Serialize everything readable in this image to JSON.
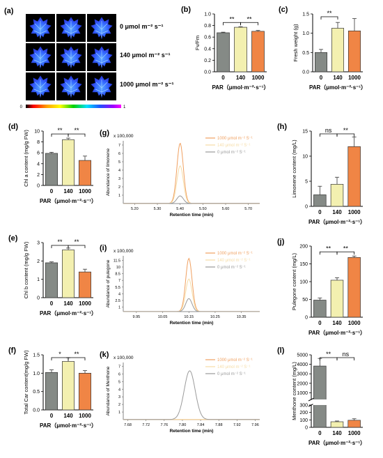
{
  "colors": {
    "gray": "#858a86",
    "cream": "#f3f0b0",
    "orange": "#f08545",
    "l1000": "#f0a060",
    "l140": "#f6dca5",
    "l0": "#9a9a9a"
  },
  "panel_a": {
    "letter": "(a)",
    "row_labels": [
      "0 μmol m⁻² s⁻¹",
      "140 μmol m⁻² s⁻¹",
      "1000 μmol m⁻² s⁻¹"
    ],
    "scale_min": "0",
    "scale_max": "1"
  },
  "chart_data": [
    {
      "id": "b",
      "letter": "(b)",
      "type": "bar",
      "categories": [
        "0",
        "140",
        "1000"
      ],
      "values": [
        0.675,
        0.77,
        0.7
      ],
      "errors": [
        0.01,
        0.01,
        0.015
      ],
      "ylabel": "Fv/Fm",
      "xlabel": "PAR（μmol·m⁻²·s⁻¹）",
      "ylim": [
        0,
        1.0
      ],
      "yticks": [
        "0.0",
        "0.2",
        "0.4",
        "0.6",
        "0.8",
        "1.0"
      ],
      "sig": [
        {
          "from": 0,
          "to": 1,
          "label": "**"
        },
        {
          "from": 1,
          "to": 2,
          "label": "**"
        }
      ]
    },
    {
      "id": "c",
      "letter": "(c)",
      "type": "bar",
      "categories": [
        "0",
        "140",
        "1000"
      ],
      "values": [
        0.5,
        1.13,
        1.06
      ],
      "errors": [
        0.08,
        0.15,
        0.32
      ],
      "ylabel": "Fresh weight (g)",
      "xlabel": "PAR（μmol·m⁻²·s⁻¹）",
      "ylim": [
        0,
        1.5
      ],
      "yticks": [
        "0.0",
        "0.5",
        "1.0",
        "1.5"
      ],
      "sig": [
        {
          "from": 0,
          "to": 1,
          "label": "**"
        }
      ]
    },
    {
      "id": "d",
      "letter": "(d)",
      "type": "bar",
      "categories": [
        "0",
        "140",
        "1000"
      ],
      "values": [
        5.9,
        8.4,
        4.6
      ],
      "errors": [
        0.2,
        0.3,
        0.8
      ],
      "ylabel": "Chl a content (mg/g FW)",
      "xlabel": "PAR（μmol·m⁻²·s⁻¹）",
      "ylim": [
        0,
        10
      ],
      "yticks": [
        "0",
        "2",
        "4",
        "6",
        "8",
        "10"
      ],
      "sig": [
        {
          "from": 0,
          "to": 1,
          "label": "**"
        },
        {
          "from": 1,
          "to": 2,
          "label": "**"
        }
      ]
    },
    {
      "id": "e",
      "letter": "(e)",
      "type": "bar",
      "categories": [
        "0",
        "140",
        "1000"
      ],
      "values": [
        1.9,
        2.6,
        1.4
      ],
      "errors": [
        0.05,
        0.1,
        0.15
      ],
      "ylabel": "Chl b content (mg/g FW)",
      "xlabel": "PAR（μmol·m⁻²·s⁻¹）",
      "ylim": [
        0,
        3
      ],
      "yticks": [
        "0",
        "1",
        "2",
        "3"
      ],
      "sig": [
        {
          "from": 0,
          "to": 1,
          "label": "**"
        },
        {
          "from": 1,
          "to": 2,
          "label": "**"
        }
      ]
    },
    {
      "id": "f",
      "letter": "(f)",
      "type": "bar",
      "categories": [
        "0",
        "140",
        "1000"
      ],
      "values": [
        1.02,
        1.32,
        1.0
      ],
      "errors": [
        0.07,
        0.1,
        0.07
      ],
      "ylabel": "Total Car content(mg/g FW)",
      "xlabel": "PAR（μmol·m⁻²·s⁻¹）",
      "ylim": [
        0,
        1.5
      ],
      "yticks": [
        "0.0",
        "0.5",
        "1.0",
        "1.5"
      ],
      "sig": [
        {
          "from": 0,
          "to": 1,
          "label": "*"
        },
        {
          "from": 1,
          "to": 2,
          "label": "**"
        }
      ]
    },
    {
      "id": "h",
      "letter": "(h)",
      "type": "bar",
      "categories": [
        "0",
        "140",
        "1000"
      ],
      "values": [
        2.3,
        4.4,
        11.9
      ],
      "errors": [
        1.7,
        1.4,
        1.9
      ],
      "ylabel": "Limonene content (mg/L)",
      "xlabel": "PAR（μmol·m⁻²·s⁻¹）",
      "ylim": [
        0,
        15
      ],
      "yticks": [
        "0",
        "5",
        "10",
        "15"
      ],
      "sig": [
        {
          "from": 0,
          "to": 1,
          "label": "ns"
        },
        {
          "from": 1,
          "to": 2,
          "label": "**"
        }
      ]
    },
    {
      "id": "j",
      "letter": "(j)",
      "type": "bar",
      "categories": [
        "0",
        "140",
        "1000"
      ],
      "values": [
        48,
        104,
        168
      ],
      "errors": [
        6,
        7,
        4
      ],
      "ylabel": "Pulegone content (mg/L)",
      "xlabel": "PAR（μmol·m⁻²·s⁻¹）",
      "ylim": [
        0,
        200
      ],
      "yticks": [
        "0",
        "50",
        "100",
        "150",
        "200"
      ],
      "sig": [
        {
          "from": 0,
          "to": 1,
          "label": "**"
        },
        {
          "from": 1,
          "to": 2,
          "label": "**"
        }
      ]
    },
    {
      "id": "l",
      "letter": "(l)",
      "type": "bar",
      "categories": [
        "0",
        "140",
        "1000"
      ],
      "values": [
        3820,
        75,
        95
      ],
      "errors": [
        800,
        10,
        20
      ],
      "ylabel": "Menthone content (mg/L)",
      "xlabel": "PAR（μmol·m⁻²·s⁻¹）",
      "ylim": [
        0,
        5000
      ],
      "yticks": [
        "0",
        "100",
        "200",
        "300",
        "1000",
        "2000",
        "3000",
        "4000",
        "5000"
      ],
      "axis_break": true,
      "sig": [
        {
          "from": 0,
          "to": 1,
          "label": "**"
        },
        {
          "from": 1,
          "to": 2,
          "label": "ns"
        }
      ]
    },
    {
      "id": "g",
      "letter": "(g)",
      "type": "line",
      "multiplier": "x 100,000",
      "ylabel": "Abundance of limonene",
      "xlabel": "Retention time (min)",
      "xlim": [
        5.15,
        5.75
      ],
      "xticks": [
        "5.20",
        "5.30",
        "5.40",
        "5.50",
        "5.60",
        "5.70"
      ],
      "ylim": [
        0,
        7.5
      ],
      "yticks": [
        "1",
        "2",
        "3",
        "4",
        "5",
        "6",
        "7"
      ],
      "peak_center": 5.4,
      "peak_width": 0.014,
      "series": [
        {
          "name": "1000 μmol m⁻² S⁻¹",
          "peak": 7.2
        },
        {
          "name": "140 μmol m⁻² S⁻¹",
          "peak": 4.5
        },
        {
          "name": "0 μmol m⁻² S⁻¹",
          "peak": 0.9
        }
      ]
    },
    {
      "id": "i",
      "letter": "(i)",
      "type": "line",
      "multiplier": "x 100,000",
      "ylabel": "Abundance of pulegone",
      "xlabel": "Retention time (min)",
      "xlim": [
        9.9,
        10.42
      ],
      "xticks": [
        "9.95",
        "10.05",
        "10.15",
        "10.25",
        "10.35"
      ],
      "ylim": [
        0,
        12.5
      ],
      "yticks": [
        "1",
        "2.5",
        "4",
        "5.5",
        "7",
        "8.5",
        "10",
        "11.5"
      ],
      "peak_center": 10.15,
      "peak_width": 0.012,
      "series": [
        {
          "name": "1000 μmol m⁻² S⁻¹",
          "peak": 11.9
        },
        {
          "name": "140 μmol m⁻² S⁻¹",
          "peak": 7.3
        },
        {
          "name": "0 μmol m⁻² S⁻¹",
          "peak": 2.9
        }
      ]
    },
    {
      "id": "k",
      "letter": "(k)",
      "type": "line",
      "multiplier": "x 100,000",
      "ylabel": "Abundance of Menthone",
      "xlabel": "Retention time (min)",
      "xlim": [
        7.67,
        7.97
      ],
      "xticks": [
        "7.68",
        "7.72",
        "7.76",
        "7.80",
        "7.84",
        "7.88",
        "7.92",
        "7.96"
      ],
      "ylim": [
        0,
        7.5
      ],
      "yticks": [
        "1",
        "2",
        "3",
        "4",
        "5",
        "6",
        "7"
      ],
      "peak_center": 7.816,
      "peak_width": 0.012,
      "series": [
        {
          "name": "1000 μmol m⁻² S⁻¹",
          "peak": 0
        },
        {
          "name": "140 μmol m⁻² S⁻¹",
          "peak": 0
        },
        {
          "name": "0 μmol m⁻² S⁻¹",
          "peak": 6.4
        }
      ]
    }
  ]
}
